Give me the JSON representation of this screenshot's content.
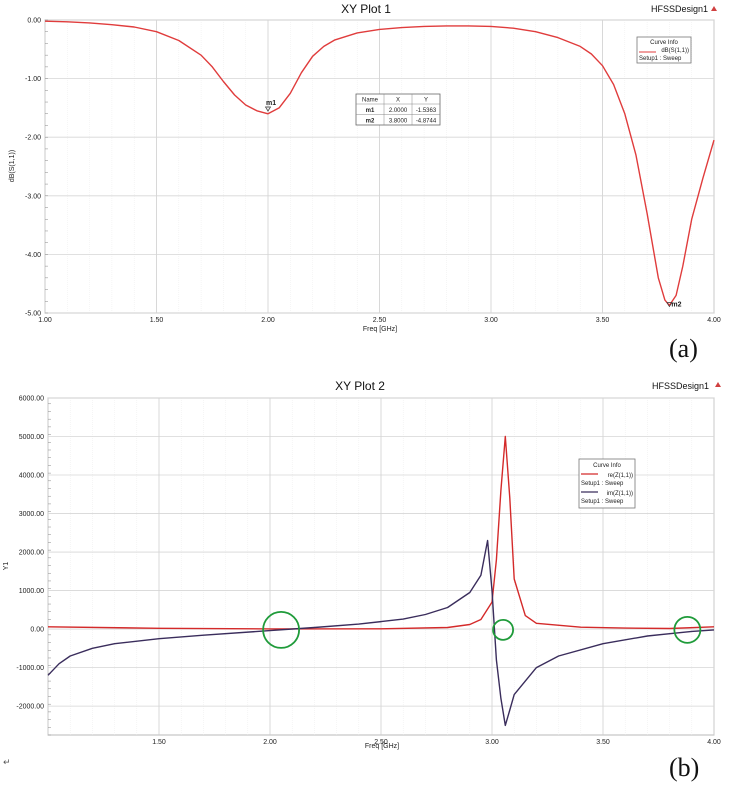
{
  "panel_labels": [
    "(a)",
    "(b)"
  ],
  "return_mark": "↵",
  "chart_data": [
    {
      "type": "line",
      "title": "XY Plot 1",
      "design_label": "HFSSDesign1",
      "xlabel": "Freq [GHz]",
      "ylabel": "dB(S(1,1))",
      "xlim": [
        1.0,
        4.0
      ],
      "ylim": [
        -5.0,
        0.0
      ],
      "x_ticks": [
        "1.00",
        "1.50",
        "2.00",
        "2.50",
        "3.00",
        "3.50",
        "4.00"
      ],
      "y_ticks": [
        "0.00",
        "-1.00",
        "-2.00",
        "-3.00",
        "-4.00",
        "-5.00"
      ],
      "grid": true,
      "legend": {
        "title": "Curve Info",
        "position": "top-right",
        "entries": [
          "dB(S(1,1))",
          "Setup1 : Sweep"
        ]
      },
      "series": [
        {
          "color": "#e03c3c",
          "x": [
            1.0,
            1.1,
            1.2,
            1.3,
            1.4,
            1.5,
            1.6,
            1.7,
            1.75,
            1.8,
            1.85,
            1.9,
            1.95,
            2.0,
            2.05,
            2.1,
            2.15,
            2.2,
            2.25,
            2.3,
            2.4,
            2.5,
            2.6,
            2.7,
            2.8,
            2.9,
            3.0,
            3.1,
            3.2,
            3.3,
            3.4,
            3.45,
            3.5,
            3.55,
            3.6,
            3.65,
            3.7,
            3.75,
            3.78,
            3.8,
            3.83,
            3.86,
            3.9,
            3.95,
            4.0
          ],
          "y": [
            -0.02,
            -0.03,
            -0.05,
            -0.08,
            -0.12,
            -0.2,
            -0.35,
            -0.6,
            -0.8,
            -1.05,
            -1.28,
            -1.45,
            -1.55,
            -1.6,
            -1.5,
            -1.25,
            -0.9,
            -0.62,
            -0.45,
            -0.34,
            -0.22,
            -0.16,
            -0.13,
            -0.11,
            -0.1,
            -0.1,
            -0.11,
            -0.14,
            -0.2,
            -0.3,
            -0.45,
            -0.58,
            -0.78,
            -1.1,
            -1.6,
            -2.3,
            -3.3,
            -4.4,
            -4.78,
            -4.87,
            -4.7,
            -4.2,
            -3.4,
            -2.7,
            -2.05
          ]
        }
      ],
      "markers": [
        {
          "name": "m1",
          "x": 2.0,
          "y": -1.5363
        },
        {
          "name": "m2",
          "x": 3.8,
          "y": -4.8744
        }
      ],
      "marker_table": {
        "headers": [
          "Name",
          "X",
          "Y"
        ],
        "rows": [
          [
            "m1",
            "2.0000",
            "-1.5363"
          ],
          [
            "m2",
            "3.8000",
            "-4.8744"
          ]
        ]
      }
    },
    {
      "type": "line",
      "title": "XY Plot 2",
      "design_label": "HFSSDesign1",
      "xlabel": "Freq [GHz]",
      "ylabel": "Y1",
      "xlim": [
        1.0,
        4.0
      ],
      "ylim": [
        -2750.0,
        6000.0
      ],
      "x_ticks": [
        "1.50",
        "2.00",
        "2.50",
        "3.00",
        "3.50",
        "4.00"
      ],
      "y_ticks": [
        "6000.00",
        "5000.00",
        "4000.00",
        "3000.00",
        "2000.00",
        "1000.00",
        "0.00",
        "-1000.00",
        "-2000.00"
      ],
      "grid": true,
      "legend": {
        "title": "Curve Info",
        "position": "top-right",
        "entries": [
          "re(Z(1,1))",
          "Setup1 : Sweep",
          "im(Z(1,1))",
          "Setup1 : Sweep"
        ]
      },
      "series": [
        {
          "color": "#d42a2a",
          "x": [
            1.0,
            1.5,
            2.0,
            2.5,
            2.8,
            2.9,
            2.95,
            3.0,
            3.02,
            3.04,
            3.06,
            3.08,
            3.1,
            3.15,
            3.2,
            3.4,
            3.6,
            3.8,
            4.0
          ],
          "y": [
            60,
            20,
            5,
            8,
            40,
            120,
            250,
            700,
            1800,
            3600,
            5000,
            3400,
            1300,
            350,
            150,
            50,
            25,
            15,
            60
          ]
        },
        {
          "color": "#3a2d5c",
          "x": [
            1.0,
            1.05,
            1.1,
            1.2,
            1.3,
            1.5,
            1.7,
            2.0,
            2.2,
            2.4,
            2.6,
            2.7,
            2.8,
            2.9,
            2.95,
            2.98,
            3.0,
            3.02,
            3.04,
            3.06,
            3.08,
            3.1,
            3.2,
            3.3,
            3.5,
            3.7,
            3.9,
            4.0
          ],
          "y": [
            -1200,
            -900,
            -700,
            -500,
            -380,
            -250,
            -160,
            -40,
            40,
            130,
            260,
            380,
            560,
            950,
            1400,
            2300,
            1000,
            -800,
            -1800,
            -2500,
            -2100,
            -1700,
            -1000,
            -700,
            -380,
            -180,
            -60,
            -20
          ]
        }
      ],
      "annotations": [
        {
          "shape": "circle",
          "x": 2.05,
          "y": -20
        },
        {
          "shape": "circle",
          "x": 3.05,
          "y": -20
        },
        {
          "shape": "circle",
          "x": 3.88,
          "y": -20
        }
      ]
    }
  ]
}
